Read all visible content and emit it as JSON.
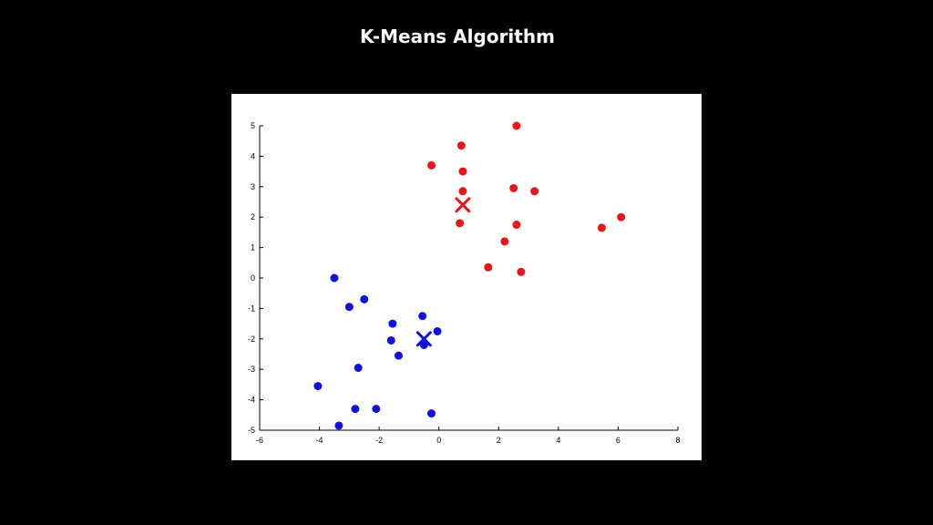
{
  "slide": {
    "title": "K-Means Algorithm"
  },
  "chart_data": {
    "type": "scatter",
    "title": "",
    "xlabel": "",
    "ylabel": "",
    "xlim": [
      -6,
      8
    ],
    "ylim": [
      -5,
      5
    ],
    "xticks": [
      "-6",
      "-4",
      "-2",
      "0",
      "2",
      "4",
      "6",
      "8"
    ],
    "yticks": [
      "5",
      "4",
      "3",
      "2",
      "1",
      "0",
      "-1",
      "-2",
      "-3",
      "-4",
      "-5"
    ],
    "grid": false,
    "series": [
      {
        "color": "#e8151b",
        "points": [
          [
            2.6,
            5.0
          ],
          [
            0.75,
            4.35
          ],
          [
            -0.25,
            3.7
          ],
          [
            0.8,
            3.5
          ],
          [
            2.5,
            2.95
          ],
          [
            0.8,
            2.85
          ],
          [
            3.2,
            2.85
          ],
          [
            0.7,
            1.8
          ],
          [
            2.6,
            1.75
          ],
          [
            6.1,
            2.0
          ],
          [
            5.45,
            1.65
          ],
          [
            2.2,
            1.2
          ],
          [
            1.65,
            0.35
          ],
          [
            2.75,
            0.2
          ]
        ],
        "centroid": [
          0.8,
          2.4
        ]
      },
      {
        "color": "#1010e0",
        "points": [
          [
            -3.5,
            0.0
          ],
          [
            -2.5,
            -0.7
          ],
          [
            -3.0,
            -0.95
          ],
          [
            -0.55,
            -1.25
          ],
          [
            -1.55,
            -1.5
          ],
          [
            -0.05,
            -1.75
          ],
          [
            -1.6,
            -2.05
          ],
          [
            -0.5,
            -2.2
          ],
          [
            -1.35,
            -2.55
          ],
          [
            -2.7,
            -2.95
          ],
          [
            -4.05,
            -3.55
          ],
          [
            -2.8,
            -4.3
          ],
          [
            -2.1,
            -4.3
          ],
          [
            -0.25,
            -4.45
          ],
          [
            -3.35,
            -4.85
          ]
        ],
        "centroid": [
          -0.5,
          -2.0
        ]
      }
    ]
  }
}
